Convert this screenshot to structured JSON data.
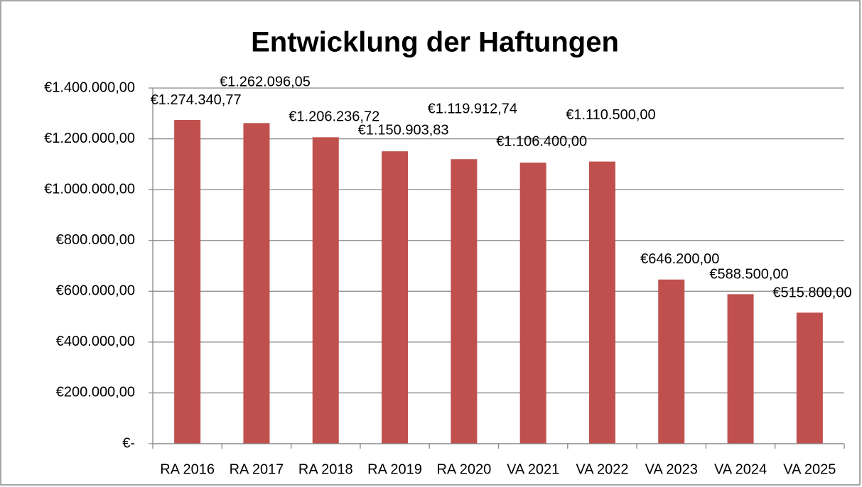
{
  "chart_data": {
    "type": "bar",
    "title": "Entwicklung der Haftungen",
    "categories": [
      "RA 2016",
      "RA 2017",
      "RA 2018",
      "RA 2019",
      "RA 2020",
      "VA 2021",
      "VA 2022",
      "VA 2023",
      "VA 2024",
      "VA 2025"
    ],
    "values": [
      1274340.77,
      1262096.05,
      1206236.72,
      1150903.83,
      1119912.74,
      1106400,
      1110500,
      646200,
      588500,
      515800
    ],
    "value_labels": [
      "€1.274.340,77",
      "€1.262.096,05",
      "€1.206.236,72",
      "€1.150.903,83",
      "€1.119.912,74",
      "€1.106.400,00",
      "€1.110.500,00",
      "€646.200,00",
      "€588.500,00",
      "€515.800,00"
    ],
    "color": "#c0504d",
    "ylim": [
      0,
      1400000
    ],
    "yticks": [
      {
        "value": 0,
        "label": "€-"
      },
      {
        "value": 200000,
        "label": "€200.000,00"
      },
      {
        "value": 400000,
        "label": "€400.000,00"
      },
      {
        "value": 600000,
        "label": "€600.000,00"
      },
      {
        "value": 800000,
        "label": "€800.000,00"
      },
      {
        "value": 1000000,
        "label": "€1.000.000,00"
      },
      {
        "value": 1200000,
        "label": "€1.200.000,00"
      },
      {
        "value": 1400000,
        "label": "€1.400.000,00"
      }
    ],
    "grid": true
  }
}
